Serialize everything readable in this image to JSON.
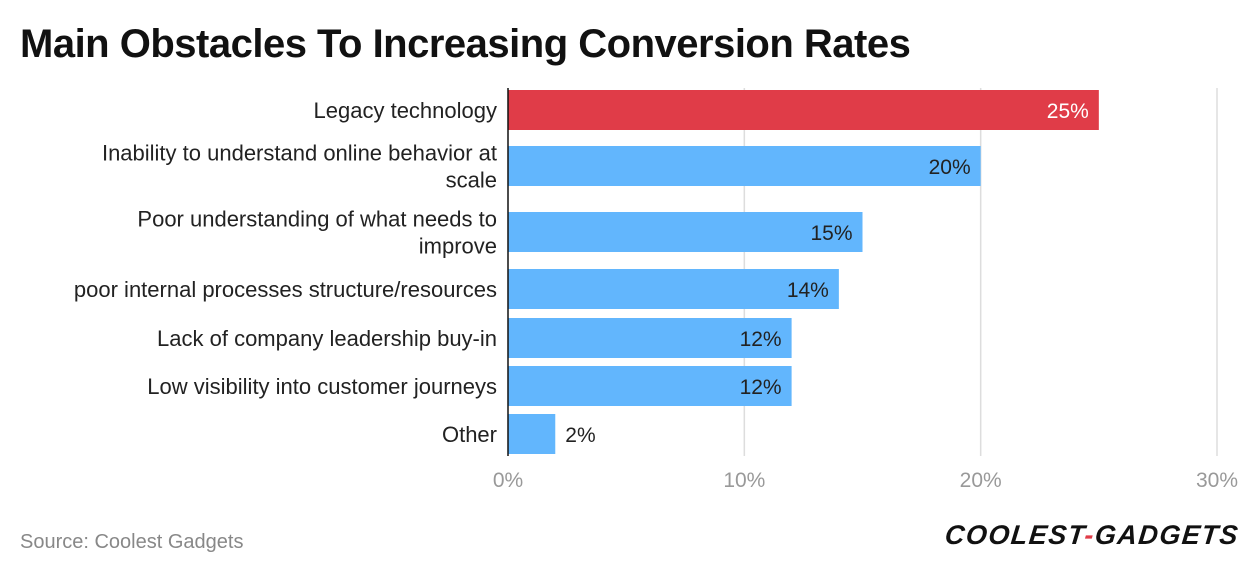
{
  "chart_data": {
    "type": "bar",
    "orientation": "horizontal",
    "title": "Main Obstacles To Increasing Conversion Rates",
    "categories": [
      [
        "Legacy technology"
      ],
      [
        "Inability to understand online behavior at",
        "scale"
      ],
      [
        "Poor understanding of what needs to",
        "improve"
      ],
      [
        "poor internal processes structure/resources"
      ],
      [
        "Lack of company leadership buy-in"
      ],
      [
        "Low visibility into customer journeys"
      ],
      [
        "Other"
      ]
    ],
    "values": [
      25,
      20,
      15,
      14,
      12,
      12,
      2
    ],
    "value_labels": [
      "25%",
      "20%",
      "15%",
      "14%",
      "12%",
      "12%",
      "2%"
    ],
    "highlight_index": 0,
    "xlim": [
      0,
      30
    ],
    "xticks": [
      0,
      10,
      20,
      30
    ],
    "xtick_labels": [
      "0%",
      "10%",
      "20%",
      "30%"
    ],
    "xlabel": "",
    "ylabel": "",
    "grid": true,
    "legend": "none"
  },
  "colors": {
    "highlight": "#e03c48",
    "bar": "#62b6fd",
    "grid": "#dddddd",
    "axis": "#111111"
  },
  "source": "Source: Coolest Gadgets",
  "logo": {
    "part1": "COOLEST",
    "dash": "-",
    "part2": "GADGETS"
  }
}
